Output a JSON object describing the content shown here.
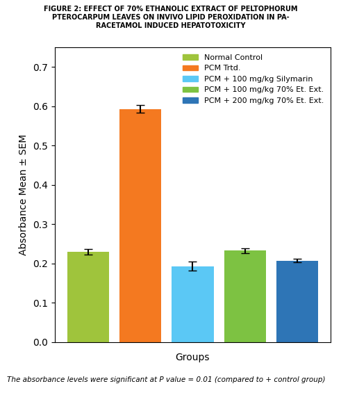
{
  "chart_data": {
    "type": "bar",
    "title": "FIGURE 2: EFFECT OF 70% ETHANOLIC EXTRACT OF PELTOPHORUM\nPTEROCARPUM LEAVES ON INVIVO LIPID PEROXIDATION IN PA-\nRACETAMOL INDUCED HEPATOTOXICITY",
    "categories": [
      "Normal Control",
      "PCM Trtd.",
      "PCM + 100 mg/kg Silymarin",
      "PCM + 100 mg/kg 70% Et. Ext.",
      "PCM + 200 mg/kg 70% Et. Ext."
    ],
    "values": [
      0.23,
      0.593,
      0.193,
      0.232,
      0.207
    ],
    "errors": [
      0.007,
      0.01,
      0.012,
      0.006,
      0.005
    ],
    "colors": [
      "#9fc43c",
      "#f47920",
      "#5bc8f5",
      "#7dc242",
      "#2e75b6"
    ],
    "x_label": "Groups",
    "y_label": "Absorbance Mean ± SEM",
    "ylim": [
      0,
      0.75
    ],
    "yticks": [
      {
        "value": 0,
        "label": "0.0"
      },
      0.1,
      0.2,
      0.3,
      0.4,
      0.5,
      0.6,
      0.7
    ],
    "tick_labels": "y",
    "legend": "upper right",
    "annotations": [
      "The absorbance levels were significant at P value = 0.01 (compared to + control group)"
    ]
  }
}
